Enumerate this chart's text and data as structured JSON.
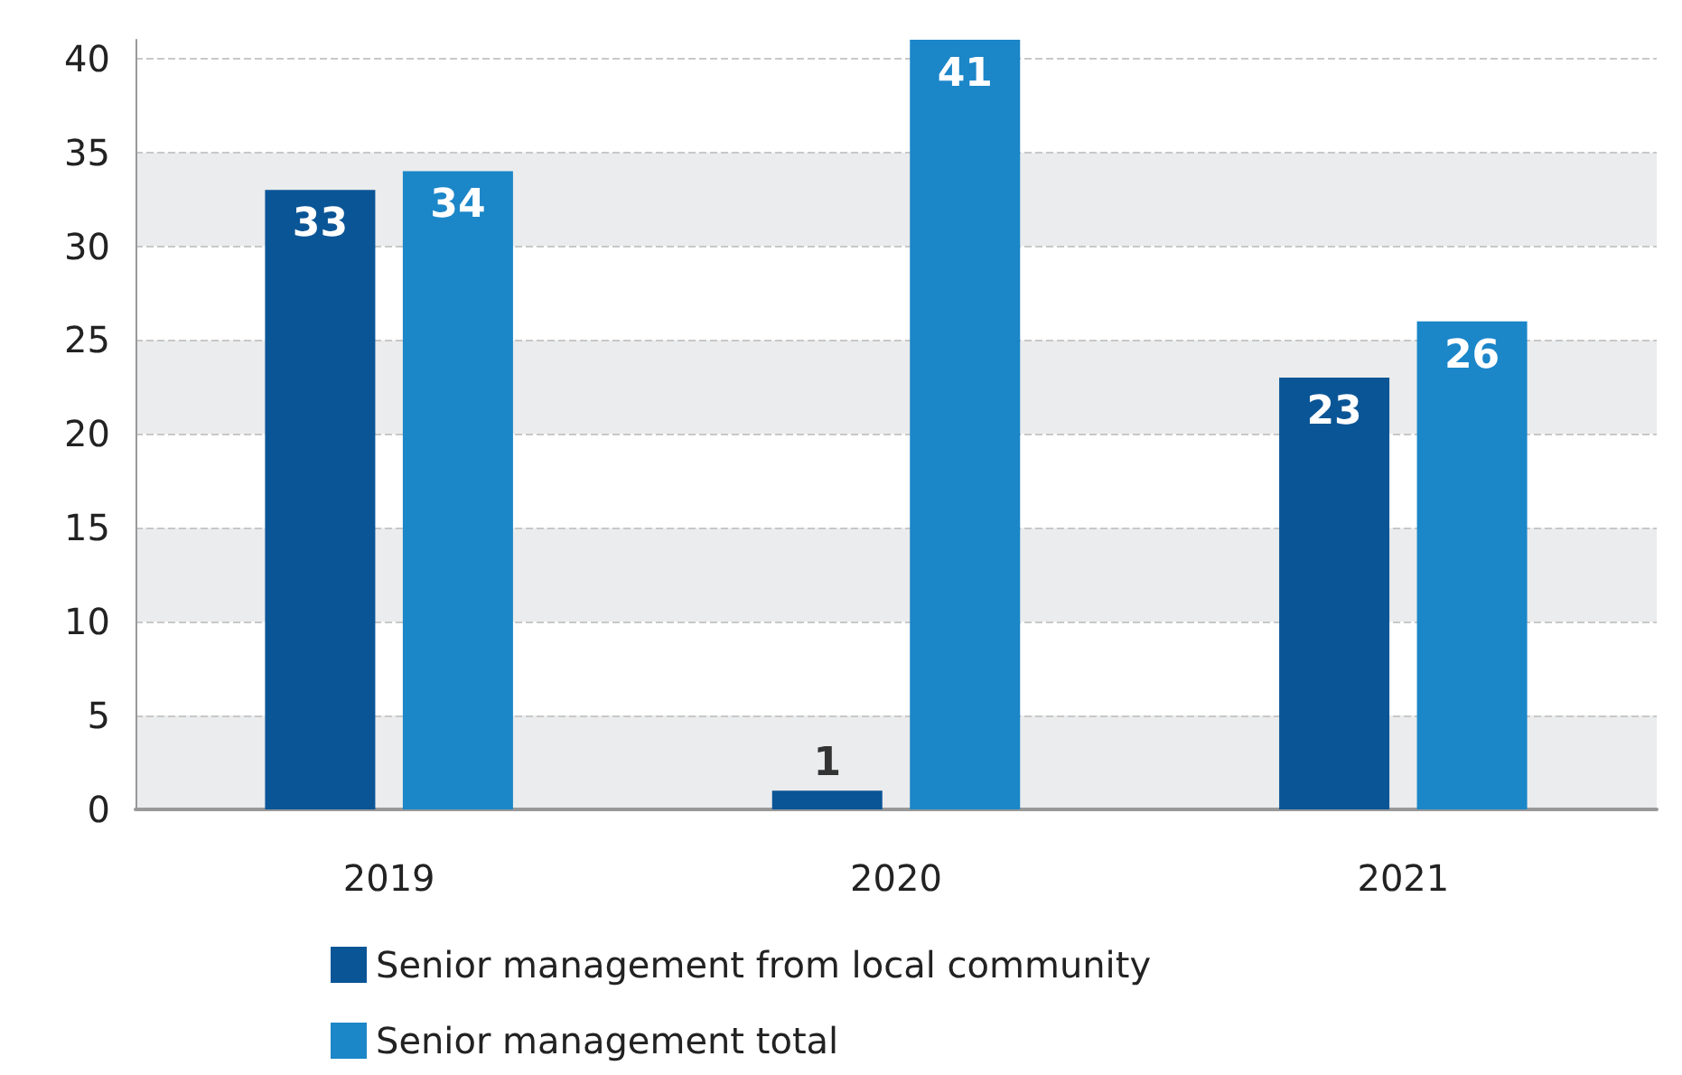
{
  "chart_data": {
    "type": "bar",
    "categories": [
      "2019",
      "2020",
      "2021"
    ],
    "series": [
      {
        "name": "Senior management from local community",
        "color": "#0a5596",
        "values": [
          33,
          1,
          23
        ]
      },
      {
        "name": "Senior management total",
        "color": "#1b86c8",
        "values": [
          34,
          41,
          26
        ]
      }
    ],
    "ylim": [
      0,
      41
    ],
    "yticks": [
      0,
      5,
      10,
      15,
      20,
      25,
      30,
      35,
      40
    ],
    "grid": "y",
    "legend": "bottom",
    "data_labels": true
  }
}
